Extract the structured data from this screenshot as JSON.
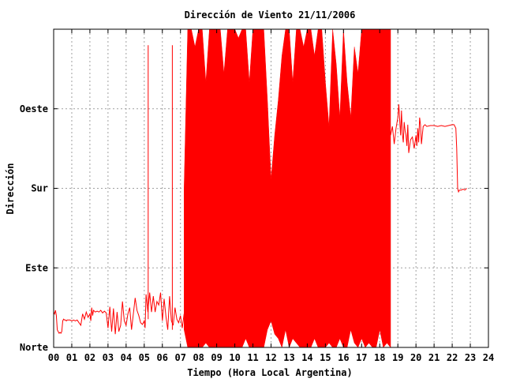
{
  "chart_data": {
    "type": "line",
    "title": "Dirección de Viento 21/11/2006",
    "xlabel": "Tiempo (Hora Local Argentina)",
    "ylabel": "Dirección",
    "x_ticks": [
      "00",
      "01",
      "02",
      "03",
      "04",
      "05",
      "06",
      "07",
      "08",
      "09",
      "10",
      "11",
      "12",
      "13",
      "14",
      "15",
      "16",
      "17",
      "18",
      "19",
      "20",
      "21",
      "22",
      "23",
      "24"
    ],
    "xlim": [
      0,
      24
    ],
    "y_ticks": [
      {
        "value": 0,
        "label": "Norte"
      },
      {
        "value": 90,
        "label": "Este"
      },
      {
        "value": 180,
        "label": "Sur"
      },
      {
        "value": 270,
        "label": "Oeste"
      }
    ],
    "ylim": [
      0,
      360
    ],
    "grid": true,
    "series": [
      {
        "color": "#ff0000",
        "segments": [
          {
            "x": [
              0.0,
              0.05,
              0.1,
              0.15,
              0.2,
              0.25,
              0.3,
              0.35,
              0.4,
              0.45,
              0.5,
              0.55,
              0.6,
              0.65,
              0.7,
              0.75,
              0.8,
              0.9,
              1.0,
              1.1,
              1.2,
              1.3,
              1.4,
              1.5,
              1.6,
              1.7,
              1.8,
              1.9,
              2.0,
              2.05,
              2.1,
              2.15,
              2.2,
              2.3,
              2.4,
              2.5,
              2.6,
              2.7,
              2.8,
              2.9,
              3.0,
              3.1,
              3.2,
              3.3,
              3.4,
              3.5,
              3.6,
              3.7,
              3.8,
              3.9,
              4.0,
              4.1,
              4.2,
              4.3,
              4.4,
              4.5,
              4.6,
              4.7,
              4.8,
              4.9,
              5.0,
              5.05,
              5.1,
              5.2,
              5.3,
              5.4,
              5.5,
              5.6,
              5.7,
              5.8,
              5.9,
              6.0,
              6.1,
              6.2,
              6.3,
              6.4,
              6.5,
              6.6,
              6.7,
              6.8,
              6.9,
              7.0,
              7.1,
              7.2
            ],
            "y": [
              40,
              38,
              42,
              36,
              20,
              18,
              16,
              17,
              16,
              18,
              30,
              32,
              31,
              31,
              30,
              31,
              31,
              31,
              30,
              31,
              30,
              31,
              28,
              25,
              38,
              32,
              40,
              34,
              38,
              30,
              45,
              36,
              42,
              40,
              41,
              40,
              42,
              39,
              41,
              39,
              22,
              46,
              18,
              44,
              15,
              40,
              18,
              25,
              52,
              30,
              25,
              38,
              45,
              20,
              38,
              56,
              42,
              36,
              28,
              26,
              30,
              22,
              60,
              40,
              62,
              40,
              58,
              40,
              52,
              48,
              62,
              30,
              55,
              35,
              20,
              58,
              30,
              25,
              45,
              32,
              28,
              36,
              22,
              38
            ]
          },
          {
            "x": [
              5.22,
              5.22
            ],
            "y": [
              32,
              342
            ]
          },
          {
            "x": [
              6.55,
              6.55
            ],
            "y": [
              20,
              342
            ]
          }
        ],
        "band": {
          "x": [
            7.2,
            7.4,
            7.6,
            7.8,
            8.0,
            8.2,
            8.4,
            8.6,
            8.8,
            9.0,
            9.2,
            9.4,
            9.6,
            9.8,
            10.0,
            10.2,
            10.4,
            10.6,
            10.8,
            11.0,
            11.2,
            11.4,
            11.6,
            11.8,
            12.0,
            12.2,
            12.4,
            12.6,
            12.8,
            13.0,
            13.2,
            13.4,
            13.6,
            13.8,
            14.0,
            14.2,
            14.4,
            14.6,
            14.8,
            15.0,
            15.2,
            15.4,
            15.6,
            15.8,
            16.0,
            16.2,
            16.4,
            16.6,
            16.8,
            17.0,
            17.2,
            17.4,
            17.6,
            17.8,
            18.0,
            18.2,
            18.4,
            18.6
          ],
          "min": [
            20,
            0,
            0,
            0,
            0,
            0,
            5,
            0,
            0,
            0,
            0,
            0,
            0,
            0,
            0,
            0,
            0,
            10,
            0,
            0,
            0,
            0,
            0,
            20,
            30,
            15,
            10,
            0,
            20,
            0,
            10,
            5,
            0,
            0,
            0,
            0,
            10,
            0,
            0,
            0,
            5,
            0,
            0,
            10,
            0,
            0,
            20,
            5,
            0,
            10,
            0,
            5,
            0,
            0,
            20,
            0,
            5,
            0
          ],
          "max": [
            180,
            360,
            360,
            340,
            360,
            360,
            300,
            360,
            360,
            360,
            360,
            310,
            360,
            360,
            360,
            350,
            360,
            360,
            300,
            360,
            360,
            360,
            360,
            280,
            190,
            240,
            280,
            330,
            360,
            360,
            300,
            360,
            360,
            340,
            360,
            360,
            330,
            360,
            360,
            300,
            250,
            360,
            320,
            260,
            360,
            300,
            260,
            340,
            310,
            360,
            360,
            360,
            360,
            360,
            360,
            360,
            360,
            360
          ]
        },
        "line": {
          "x": [
            18.6,
            18.7,
            18.8,
            18.9,
            19.0,
            19.05,
            19.1,
            19.15,
            19.2,
            19.25,
            19.3,
            19.35,
            19.4,
            19.45,
            19.5,
            19.55,
            19.6,
            19.7,
            19.8,
            19.9,
            20.0,
            20.05,
            20.1,
            20.15,
            20.2,
            20.25,
            20.3,
            20.4,
            20.5,
            20.6,
            20.8,
            21.0,
            21.2,
            21.4,
            21.6,
            21.8,
            22.0,
            22.1,
            22.2,
            22.25,
            22.3,
            22.35,
            22.4,
            22.5,
            22.6,
            22.7,
            22.8
          ],
          "y": [
            240,
            250,
            230,
            248,
            260,
            275,
            258,
            240,
            268,
            242,
            232,
            255,
            245,
            240,
            228,
            252,
            220,
            235,
            238,
            225,
            240,
            228,
            248,
            232,
            260,
            252,
            230,
            250,
            252,
            250,
            251,
            251,
            250,
            251,
            250,
            251,
            252,
            252,
            248,
            225,
            180,
            176,
            178,
            178,
            179,
            178,
            180
          ]
        }
      }
    ]
  }
}
